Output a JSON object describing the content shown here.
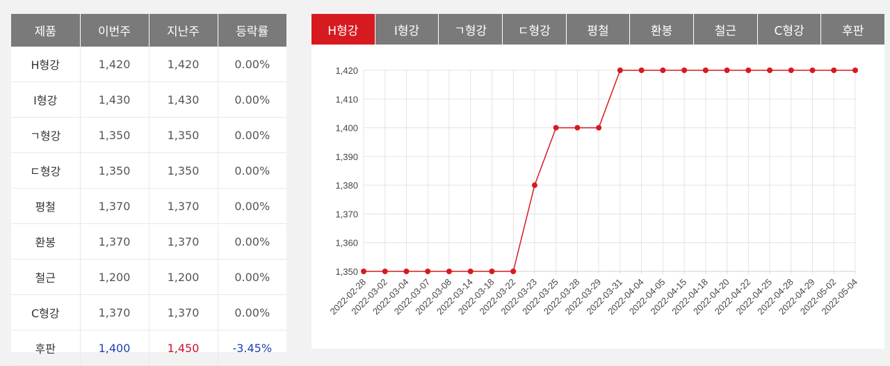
{
  "table": {
    "headers": [
      "제품",
      "이번주",
      "지난주",
      "등락률"
    ],
    "rows": [
      {
        "product": "H형강",
        "this_week": "1,420",
        "last_week": "1,420",
        "change": "0.00%"
      },
      {
        "product": "I형강",
        "this_week": "1,430",
        "last_week": "1,430",
        "change": "0.00%"
      },
      {
        "product": "ㄱ형강",
        "this_week": "1,350",
        "last_week": "1,350",
        "change": "0.00%"
      },
      {
        "product": "ㄷ형강",
        "this_week": "1,350",
        "last_week": "1,350",
        "change": "0.00%"
      },
      {
        "product": "평철",
        "this_week": "1,370",
        "last_week": "1,370",
        "change": "0.00%"
      },
      {
        "product": "환봉",
        "this_week": "1,370",
        "last_week": "1,370",
        "change": "0.00%"
      },
      {
        "product": "철근",
        "this_week": "1,200",
        "last_week": "1,200",
        "change": "0.00%"
      },
      {
        "product": "C형강",
        "this_week": "1,370",
        "last_week": "1,370",
        "change": "0.00%"
      },
      {
        "product": "후판",
        "this_week": "1,400",
        "last_week": "1,450",
        "change": "-3.45%"
      }
    ]
  },
  "colors": {
    "accent": "#d71920",
    "tab": "#7a7a7a",
    "up": "#c8102e",
    "down": "#1e40af"
  },
  "tabs": [
    "H형강",
    "I형강",
    "ㄱ형강",
    "ㄷ형강",
    "평철",
    "환봉",
    "철근",
    "C형강",
    "후판"
  ],
  "active_tab": "H형강",
  "chart_data": {
    "type": "line",
    "x": [
      "2022-02-28",
      "2022-03-02",
      "2022-03-04",
      "2022-03-07",
      "2022-03-08",
      "2022-03-14",
      "2022-03-18",
      "2022-03-22",
      "2022-03-23",
      "2022-03-25",
      "2022-03-28",
      "2022-03-29",
      "2022-03-31",
      "2022-04-04",
      "2022-04-05",
      "2022-04-15",
      "2022-04-18",
      "2022-04-20",
      "2022-04-22",
      "2022-04-25",
      "2022-04-28",
      "2022-04-29",
      "2022-05-02",
      "2022-05-04"
    ],
    "series": [
      {
        "values": [
          1350,
          1350,
          1350,
          1350,
          1350,
          1350,
          1350,
          1350,
          1380,
          1400,
          1400,
          1400,
          1420,
          1420,
          1420,
          1420,
          1420,
          1420,
          1420,
          1420,
          1420,
          1420,
          1420,
          1420
        ]
      }
    ],
    "ylim": [
      1350,
      1420
    ],
    "yticks": [
      "1,350",
      "1,360",
      "1,370",
      "1,380",
      "1,390",
      "1,400",
      "1,410",
      "1,420"
    ],
    "ytick_values": [
      1350,
      1360,
      1370,
      1380,
      1390,
      1400,
      1410,
      1420
    ],
    "grid": true,
    "line_color": "#d71920"
  }
}
